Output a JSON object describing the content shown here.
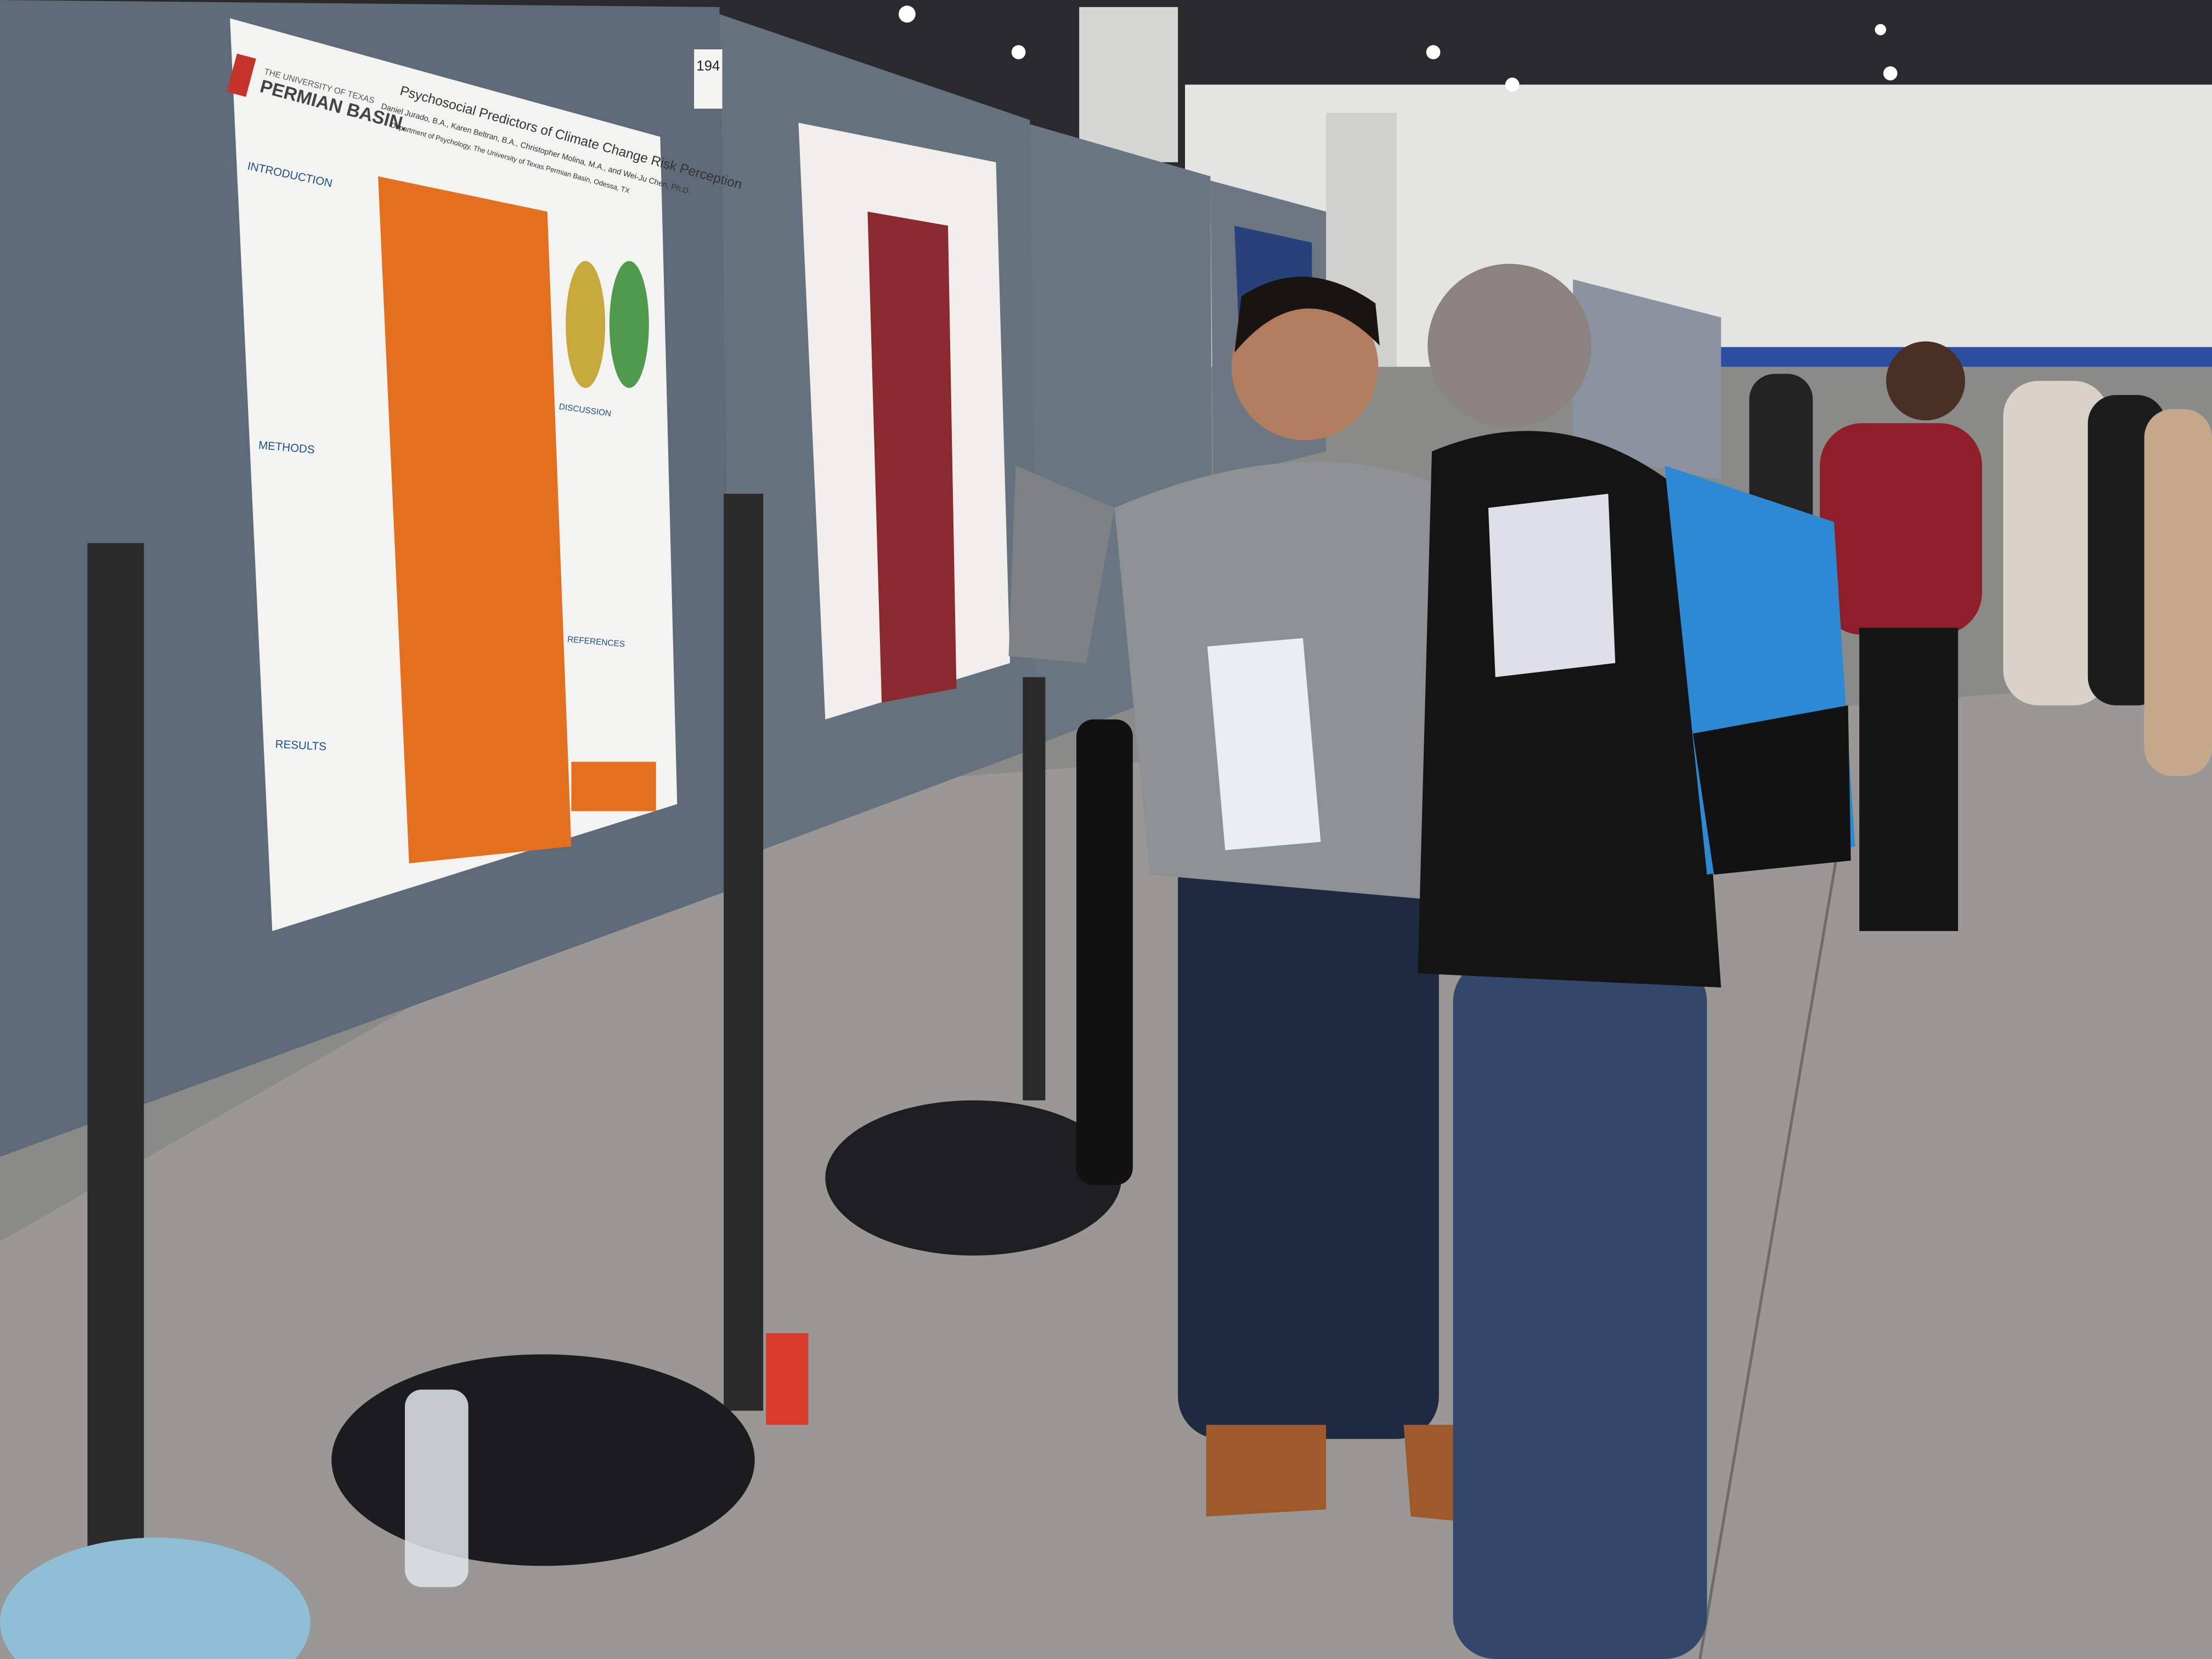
{
  "board_number": "194",
  "poster": {
    "institution": "THE UNIVERSITY OF TEXAS",
    "institution_name": "PERMIAN BASIN.",
    "title": "Psychosocial Predictors of Climate Change Risk Perception",
    "authors": "Daniel Jurado, B.A., Karen Beltran, B.A., Christopher Molina, M.A., and Wei-Ju Chen, Ph.D.",
    "department": "Department of Psychology, The University of Texas Permian Basin, Odessa, TX",
    "sections": [
      "INTRODUCTION",
      "METHODS",
      "RESULTS",
      "DISCUSSION",
      "REFERENCES"
    ]
  }
}
